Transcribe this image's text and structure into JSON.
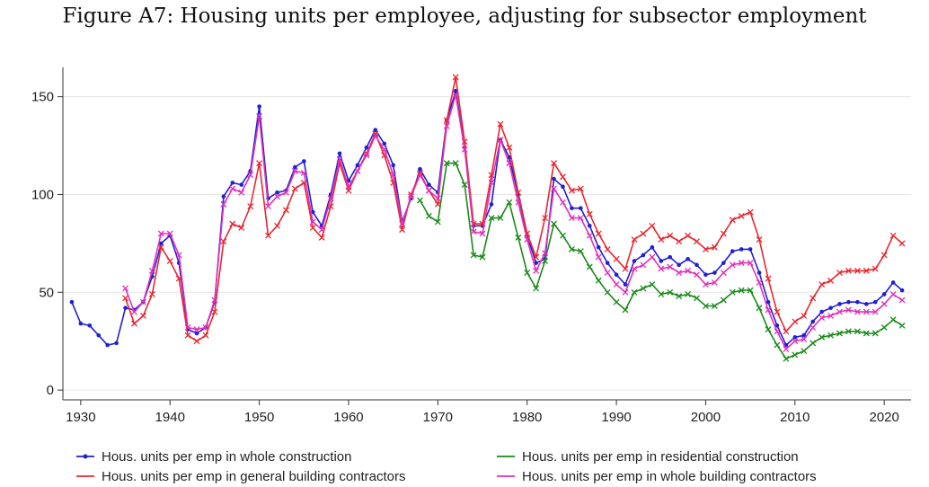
{
  "page": {
    "title": "Figure A7: Housing units per employee, adjusting for subsector employment"
  },
  "chart_data": {
    "type": "line",
    "title": "Figure A7: Housing units per employee, adjusting for subsector employment",
    "xlabel": "",
    "ylabel": "",
    "xlim": [
      1928,
      2023
    ],
    "ylim": [
      -5,
      165
    ],
    "xticks": [
      1930,
      1940,
      1950,
      1960,
      1970,
      1980,
      1990,
      2000,
      2010,
      2020
    ],
    "yticks": [
      0,
      50,
      100,
      150
    ],
    "grid": true,
    "legend_position": "bottom",
    "series": [
      {
        "name": "Hous. units per emp in whole construction",
        "color": "#1f1fd6",
        "marker": "dot",
        "x": [
          1929,
          1930,
          1931,
          1932,
          1933,
          1934,
          1935,
          1936,
          1937,
          1938,
          1939,
          1940,
          1941,
          1942,
          1943,
          1944,
          1945,
          1946,
          1947,
          1948,
          1949,
          1950,
          1951,
          1952,
          1953,
          1954,
          1955,
          1956,
          1957,
          1958,
          1959,
          1960,
          1961,
          1962,
          1963,
          1964,
          1965,
          1966,
          1967,
          1968,
          1969,
          1970,
          1971,
          1972,
          1973,
          1974,
          1975,
          1976,
          1977,
          1978,
          1979,
          1980,
          1981,
          1982,
          1983,
          1984,
          1985,
          1986,
          1987,
          1988,
          1989,
          1990,
          1991,
          1992,
          1993,
          1994,
          1995,
          1996,
          1997,
          1998,
          1999,
          2000,
          2001,
          2002,
          2003,
          2004,
          2005,
          2006,
          2007,
          2008,
          2009,
          2010,
          2011,
          2012,
          2013,
          2014,
          2015,
          2016,
          2017,
          2018,
          2019,
          2020,
          2021,
          2022
        ],
        "values": [
          45,
          34,
          33,
          28,
          23,
          24,
          42,
          41,
          45,
          58,
          75,
          79,
          65,
          31,
          29,
          32,
          45,
          99,
          106,
          105,
          112,
          145,
          98,
          101,
          102,
          114,
          117,
          91,
          84,
          100,
          121,
          107,
          115,
          124,
          133,
          126,
          115,
          86,
          98,
          113,
          105,
          101,
          138,
          153,
          124,
          84,
          84,
          95,
          128,
          119,
          100,
          79,
          65,
          67,
          108,
          104,
          93,
          93,
          84,
          73,
          65,
          59,
          54,
          66,
          69,
          73,
          66,
          68,
          64,
          67,
          64,
          59,
          60,
          65,
          71,
          72,
          72,
          60,
          45,
          33,
          23,
          27,
          28,
          35,
          40,
          42,
          44,
          45,
          45,
          44,
          45,
          49,
          55,
          51
        ]
      },
      {
        "name": "Hous. units per emp in general building contractors",
        "color": "#e8272f",
        "marker": "x",
        "x": [
          1935,
          1936,
          1937,
          1938,
          1939,
          1940,
          1941,
          1942,
          1943,
          1944,
          1945,
          1946,
          1947,
          1948,
          1949,
          1950,
          1951,
          1952,
          1953,
          1954,
          1955,
          1956,
          1957,
          1958,
          1959,
          1960,
          1961,
          1962,
          1963,
          1964,
          1965,
          1966,
          1967,
          1968,
          1969,
          1970,
          1971,
          1972,
          1973,
          1974,
          1975,
          1976,
          1977,
          1978,
          1979,
          1980,
          1981,
          1982,
          1983,
          1984,
          1985,
          1986,
          1987,
          1988,
          1989,
          1990,
          1991,
          1992,
          1993,
          1994,
          1995,
          1996,
          1997,
          1998,
          1999,
          2000,
          2001,
          2002,
          2003,
          2004,
          2005,
          2006,
          2007,
          2008,
          2009,
          2010,
          2011,
          2012,
          2013,
          2014,
          2015,
          2016,
          2017,
          2018,
          2019,
          2020,
          2021,
          2022
        ],
        "values": [
          47,
          34,
          38,
          49,
          73,
          66,
          57,
          28,
          25,
          28,
          40,
          76,
          85,
          83,
          94,
          116,
          79,
          84,
          92,
          103,
          106,
          83,
          78,
          94,
          116,
          102,
          112,
          121,
          131,
          120,
          106,
          82,
          100,
          111,
          102,
          95,
          138,
          160,
          127,
          85,
          85,
          110,
          136,
          124,
          101,
          80,
          68,
          88,
          116,
          109,
          102,
          103,
          90,
          80,
          72,
          67,
          62,
          77,
          80,
          84,
          77,
          79,
          76,
          79,
          76,
          72,
          73,
          80,
          87,
          89,
          91,
          77,
          57,
          40,
          30,
          35,
          38,
          47,
          54,
          56,
          60,
          61,
          61,
          61,
          62,
          69,
          79,
          75
        ]
      },
      {
        "name": "Hous. units per emp in residential construction",
        "color": "#1a8a1a",
        "marker": "x",
        "x": [
          1968,
          1969,
          1970,
          1971,
          1972,
          1973,
          1974,
          1975,
          1976,
          1977,
          1978,
          1979,
          1980,
          1981,
          1982,
          1983,
          1984,
          1985,
          1986,
          1987,
          1988,
          1989,
          1990,
          1991,
          1992,
          1993,
          1994,
          1995,
          1996,
          1997,
          1998,
          1999,
          2000,
          2001,
          2002,
          2003,
          2004,
          2005,
          2006,
          2007,
          2008,
          2009,
          2010,
          2011,
          2012,
          2013,
          2014,
          2015,
          2016,
          2017,
          2018,
          2019,
          2020,
          2021,
          2022
        ],
        "values": [
          97,
          89,
          86,
          116,
          116,
          105,
          69,
          68,
          88,
          88,
          96,
          78,
          60,
          52,
          66,
          85,
          79,
          72,
          71,
          63,
          56,
          50,
          45,
          41,
          50,
          52,
          54,
          49,
          50,
          48,
          49,
          47,
          43,
          43,
          46,
          50,
          51,
          51,
          42,
          31,
          23,
          16,
          18,
          20,
          24,
          27,
          28,
          29,
          30,
          30,
          29,
          29,
          32,
          36,
          33
        ]
      },
      {
        "name": "Hous. units per emp in whole building contractors",
        "color": "#e030b8",
        "marker": "x",
        "x": [
          1935,
          1936,
          1937,
          1938,
          1939,
          1940,
          1941,
          1942,
          1943,
          1944,
          1945,
          1946,
          1947,
          1948,
          1949,
          1950,
          1951,
          1952,
          1953,
          1954,
          1955,
          1956,
          1957,
          1958,
          1959,
          1960,
          1961,
          1962,
          1963,
          1964,
          1965,
          1966,
          1967,
          1968,
          1969,
          1970,
          1971,
          1972,
          1973,
          1974,
          1975,
          1976,
          1977,
          1978,
          1979,
          1980,
          1981,
          1982,
          1983,
          1984,
          1985,
          1986,
          1987,
          1988,
          1989,
          1990,
          1991,
          1992,
          1993,
          1994,
          1995,
          1996,
          1997,
          1998,
          1999,
          2000,
          2001,
          2002,
          2003,
          2004,
          2005,
          2006,
          2007,
          2008,
          2009,
          2010,
          2011,
          2012,
          2013,
          2014,
          2015,
          2016,
          2017,
          2018,
          2019,
          2020,
          2021,
          2022
        ],
        "values": [
          52,
          40,
          45,
          61,
          80,
          80,
          69,
          32,
          31,
          32,
          46,
          95,
          103,
          101,
          110,
          140,
          94,
          99,
          101,
          112,
          111,
          86,
          82,
          98,
          118,
          104,
          112,
          120,
          130,
          123,
          110,
          85,
          99,
          110,
          102,
          98,
          135,
          151,
          123,
          81,
          80,
          106,
          128,
          116,
          96,
          77,
          61,
          70,
          103,
          96,
          88,
          88,
          79,
          68,
          60,
          54,
          50,
          62,
          64,
          68,
          62,
          63,
          60,
          61,
          59,
          54,
          55,
          60,
          64,
          65,
          65,
          55,
          41,
          30,
          21,
          25,
          26,
          32,
          37,
          38,
          40,
          41,
          40,
          40,
          40,
          44,
          49,
          46
        ]
      }
    ]
  }
}
